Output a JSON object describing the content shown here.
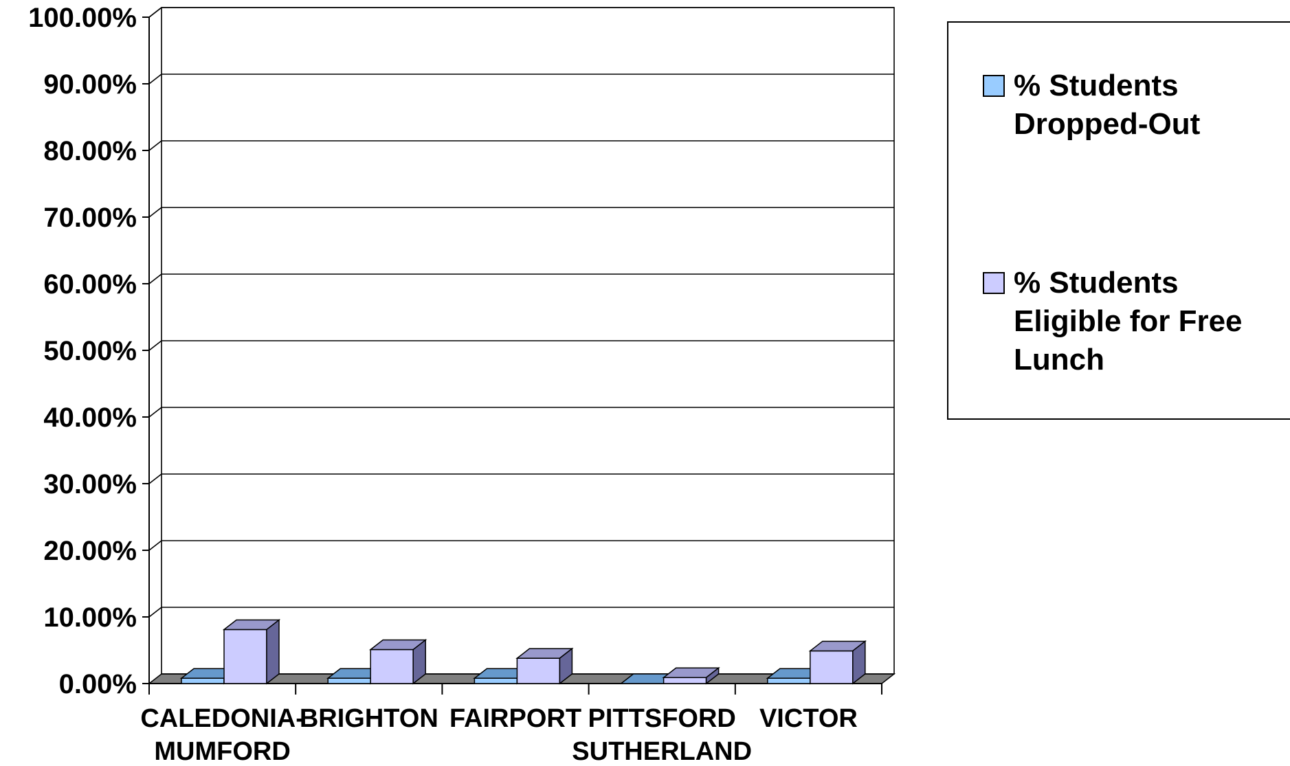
{
  "chart_data": {
    "type": "bar",
    "title": "",
    "xlabel": "",
    "ylabel": "",
    "ylim": [
      0,
      1.0
    ],
    "y_ticks": [
      "0.00%",
      "10.00%",
      "20.00%",
      "30.00%",
      "40.00%",
      "50.00%",
      "60.00%",
      "70.00%",
      "80.00%",
      "90.00%",
      "100.00%"
    ],
    "grid": true,
    "style": "3d-column",
    "legend_position": "right",
    "categories": [
      [
        "CALEDONIA-",
        "MUMFORD"
      ],
      [
        "BRIGHTON"
      ],
      [
        "FAIRPORT"
      ],
      [
        "PITTSFORD",
        "SUTHERLAND"
      ],
      [
        "VICTOR"
      ]
    ],
    "series": [
      {
        "name": [
          "% Students",
          "Dropped-Out"
        ],
        "values": [
          0.008,
          0.008,
          0.008,
          0.0,
          0.008
        ],
        "color": "#99ccff",
        "top_color": "#6699cc",
        "side_color": "#5c8ab8"
      },
      {
        "name": [
          "% Students",
          "Eligible for Free",
          "Lunch"
        ],
        "values": [
          0.081,
          0.051,
          0.038,
          0.009,
          0.049
        ],
        "color": "#ccccff",
        "top_color": "#9999cc",
        "side_color": "#666699"
      }
    ],
    "colors": {
      "floor": "#808080",
      "grid": "#000000",
      "background": "#ffffff"
    }
  }
}
